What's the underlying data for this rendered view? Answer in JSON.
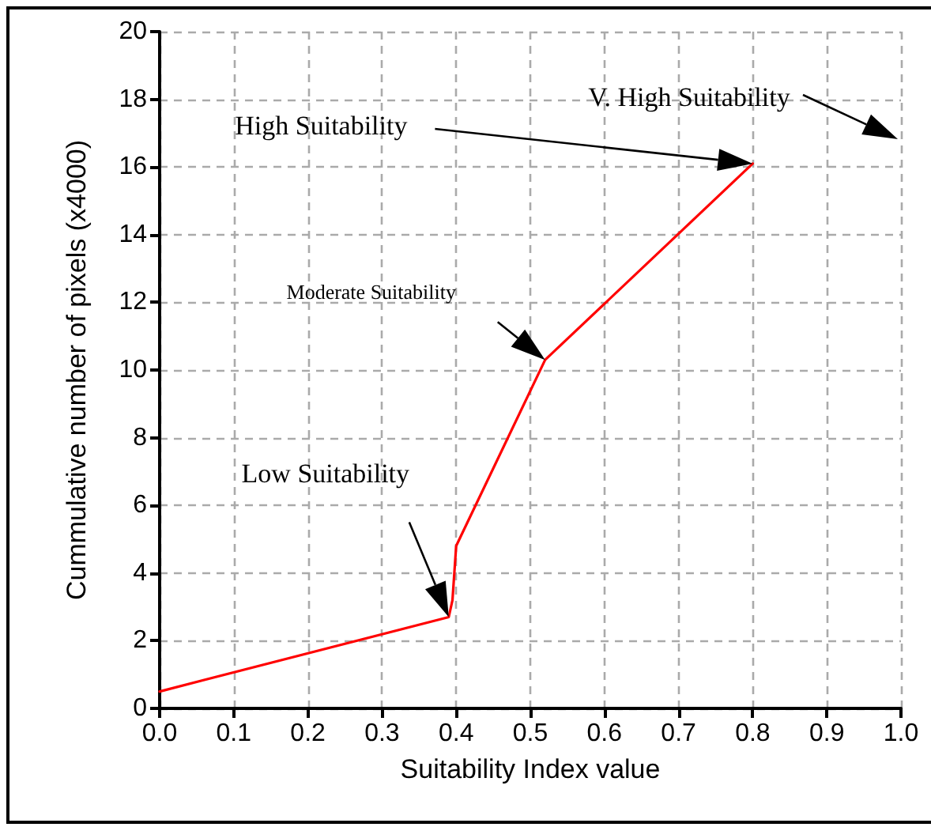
{
  "chart_data": {
    "type": "line",
    "xlabel": "Suitability Index value",
    "ylabel": "Cummulative number of pixels (x4000)",
    "xlim": [
      0,
      1
    ],
    "xticks": [
      {
        "value": 0,
        "label": "0.0"
      },
      0.1,
      0.2,
      0.3,
      0.4,
      0.5,
      0.6,
      0.7,
      0.8,
      0.9,
      {
        "value": 1,
        "label": "1.0"
      }
    ],
    "ylim": [
      0,
      20
    ],
    "yticks": [
      0,
      2,
      4,
      6,
      8,
      10,
      12,
      14,
      16,
      18,
      20
    ],
    "grid": true,
    "marker": "none",
    "line_style": "solid",
    "series": [
      {
        "color": "#ff0000",
        "x": [
          0,
          0.39,
          0.395,
          0.4,
          0.52,
          0.8
        ],
        "values": [
          0.5,
          2.7,
          3.2,
          4.8,
          10.3,
          16.1
        ]
      }
    ],
    "annotations": [
      "Low Suitability",
      "Moderate Suitability",
      "High Suitability",
      "V. High Suitability"
    ]
  }
}
